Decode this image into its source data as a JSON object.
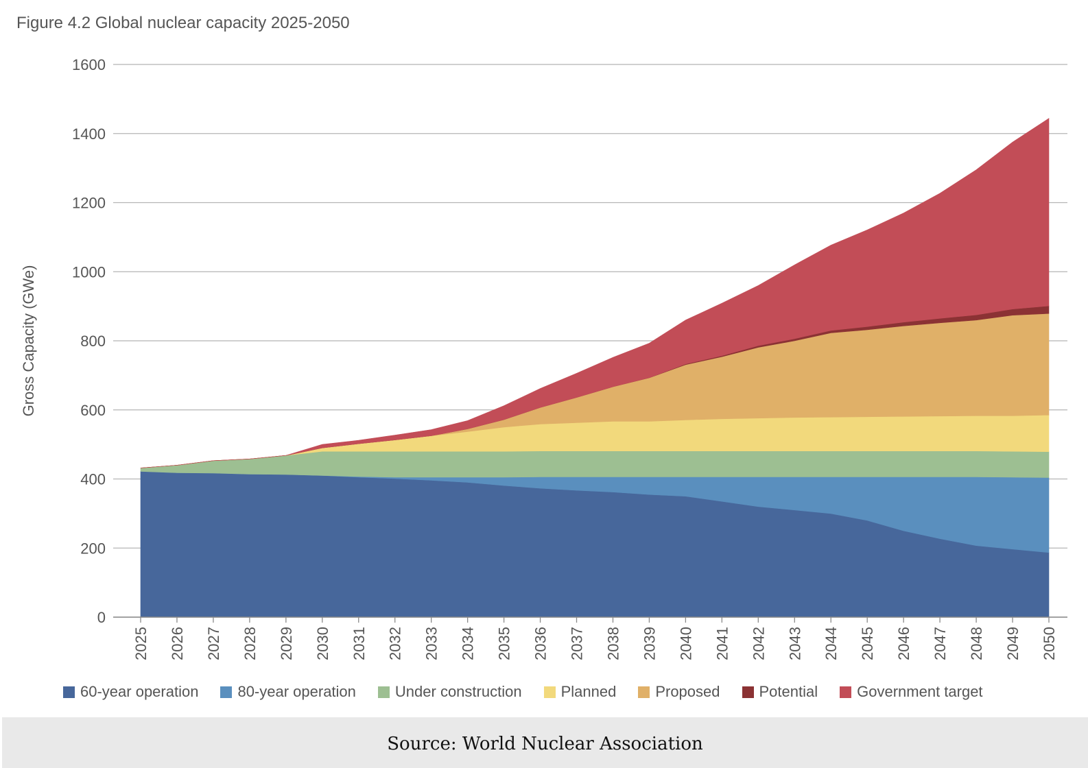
{
  "figure": {
    "title": "Figure 4.2 Global nuclear capacity 2025-2050"
  },
  "chart_data": {
    "type": "area",
    "stacked": true,
    "title": "Figure 4.2 Global nuclear capacity 2025-2050",
    "xlabel": "",
    "ylabel": "Gross Capacity (GWe)",
    "ylim": [
      0,
      1600
    ],
    "yticks": [
      0,
      200,
      400,
      600,
      800,
      1000,
      1200,
      1400,
      1600
    ],
    "ytick_labels": [
      "0",
      "200",
      "400",
      "600",
      "800",
      "1000",
      "1200",
      "1400",
      "1600"
    ],
    "grid": true,
    "legend_position": "bottom",
    "categories": [
      "2025",
      "2026",
      "2027",
      "2028",
      "2029",
      "2030",
      "2031",
      "2032",
      "2033",
      "2034",
      "2035",
      "2036",
      "2037",
      "2038",
      "2039",
      "2040",
      "2041",
      "2042",
      "2043",
      "2044",
      "2045",
      "2046",
      "2047",
      "2048",
      "2049",
      "2050"
    ],
    "series": [
      {
        "name": "60-year operation",
        "color": "#47679b",
        "values": [
          422,
          418,
          417,
          414,
          413,
          410,
          405,
          401,
          396,
          390,
          381,
          373,
          367,
          362,
          355,
          350,
          335,
          320,
          310,
          300,
          280,
          250,
          227,
          207,
          197,
          187
        ]
      },
      {
        "name": "80-year operation",
        "color": "#5a8fbe",
        "values": [
          0,
          0,
          0,
          0,
          0,
          0,
          2,
          4,
          9,
          15,
          24,
          33,
          39,
          44,
          51,
          56,
          71,
          86,
          96,
          106,
          126,
          156,
          179,
          199,
          208,
          217
        ]
      },
      {
        "name": "Under construction",
        "color": "#9dbf92",
        "values": [
          10,
          22,
          36,
          44,
          55,
          70,
          73,
          75,
          75,
          75,
          75,
          75,
          75,
          75,
          75,
          75,
          75,
          75,
          75,
          75,
          75,
          75,
          75,
          75,
          75,
          75
        ]
      },
      {
        "name": "Planned",
        "color": "#f2d97c",
        "values": [
          0,
          0,
          0,
          0,
          0,
          10,
          22,
          33,
          45,
          57,
          70,
          78,
          82,
          86,
          86,
          90,
          93,
          95,
          97,
          98,
          99,
          100,
          101,
          102,
          103,
          106
        ]
      },
      {
        "name": "Proposed",
        "color": "#e0b068",
        "values": [
          0,
          0,
          0,
          0,
          0,
          0,
          0,
          0,
          0,
          8,
          22,
          48,
          73,
          100,
          126,
          160,
          180,
          205,
          222,
          244,
          252,
          262,
          270,
          277,
          291,
          294
        ]
      },
      {
        "name": "Potential",
        "color": "#8b3234",
        "values": [
          0,
          0,
          0,
          0,
          0,
          0,
          0,
          0,
          0,
          0,
          0,
          0,
          0,
          0,
          0,
          2,
          3,
          5,
          6,
          7,
          9,
          11,
          13,
          15,
          18,
          22
        ]
      },
      {
        "name": "Government target",
        "color": "#c24d57",
        "values": [
          0,
          0,
          0,
          0,
          0,
          10,
          10,
          14,
          18,
          24,
          40,
          55,
          70,
          85,
          100,
          127,
          152,
          174,
          214,
          247,
          280,
          316,
          362,
          420,
          483,
          543
        ]
      }
    ]
  },
  "source": {
    "text": "Source: World Nuclear Association"
  }
}
